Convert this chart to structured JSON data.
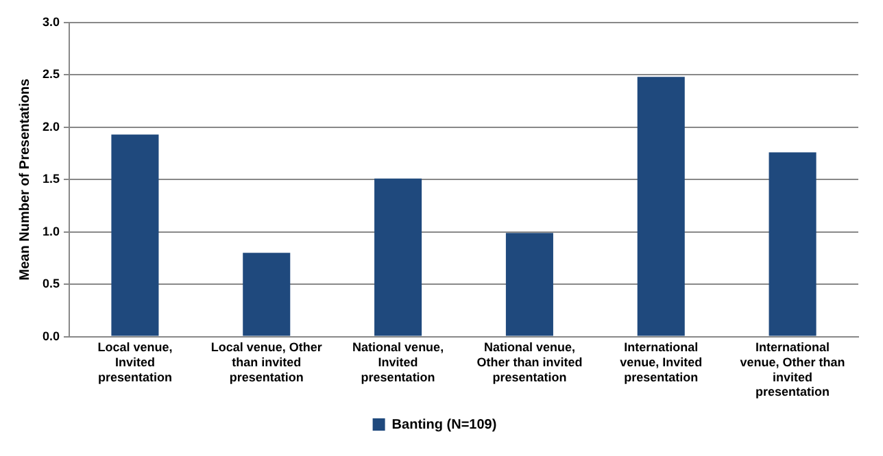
{
  "chart_data": {
    "type": "bar",
    "ylabel": "Mean Number of Presentations",
    "categories": [
      "Local venue, Invited presentation",
      "Local venue, Other than invited presentation",
      "National venue, Invited presentation",
      "National venue, Other than invited presentation",
      "International venue, Invited presentation",
      "International venue, Other than invited presentation"
    ],
    "series": [
      {
        "name": "Banting (N=109)",
        "color": "#1f497d",
        "values": [
          1.93,
          0.8,
          1.51,
          0.99,
          2.48,
          1.76
        ]
      }
    ],
    "ylim": [
      0,
      3
    ],
    "yticks": [
      {
        "value": 0,
        "label": "0.0"
      },
      {
        "value": 0.5,
        "label": "0.5"
      },
      {
        "value": 1,
        "label": "1.0"
      },
      {
        "value": 1.5,
        "label": "1.5"
      },
      {
        "value": 2,
        "label": "2.0"
      },
      {
        "value": 2.5,
        "label": "2.5"
      },
      {
        "value": 3,
        "label": "3.0"
      }
    ],
    "grid": "y",
    "legend": "bottom"
  }
}
